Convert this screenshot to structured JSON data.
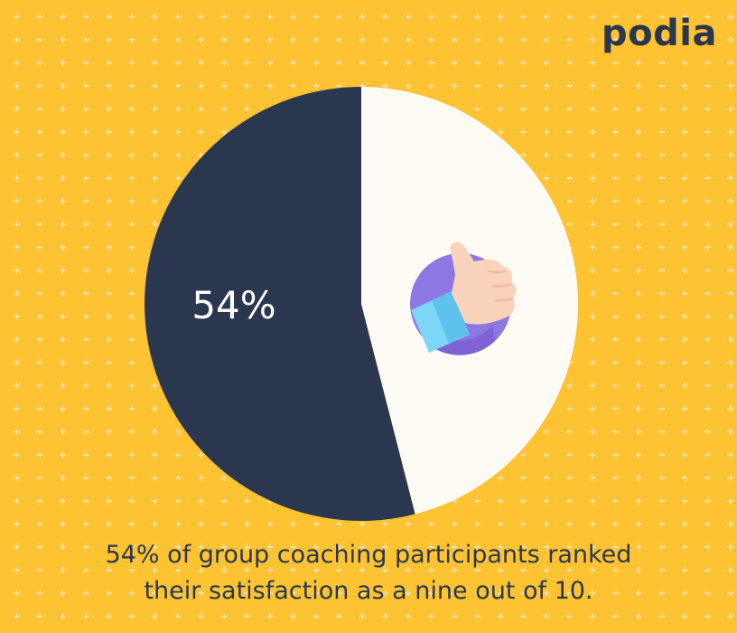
{
  "brand": {
    "logo_text": "podia"
  },
  "colors": {
    "background": "#FEC332",
    "pattern": "#F5E6B0",
    "slice_primary": "#2A374E",
    "slice_remainder": "#FEFAF4",
    "text": "#2A374E",
    "icon_circle": "#8E77E2",
    "icon_circle_shadow": "#7F62D6",
    "icon_hand": "#FAD3BD",
    "icon_sleeve": "#7DD6F8"
  },
  "chart_data": {
    "type": "pie",
    "slices": [
      {
        "value": 54,
        "color": "#2A374E"
      },
      {
        "value": 46,
        "color": "#FEFAF4"
      }
    ],
    "data_labels": [
      "54%"
    ],
    "icon": "thumbs-up-icon"
  },
  "caption": {
    "line1": "54% of group coaching participants ranked",
    "line2": "their satisfaction as a nine out of 10."
  }
}
